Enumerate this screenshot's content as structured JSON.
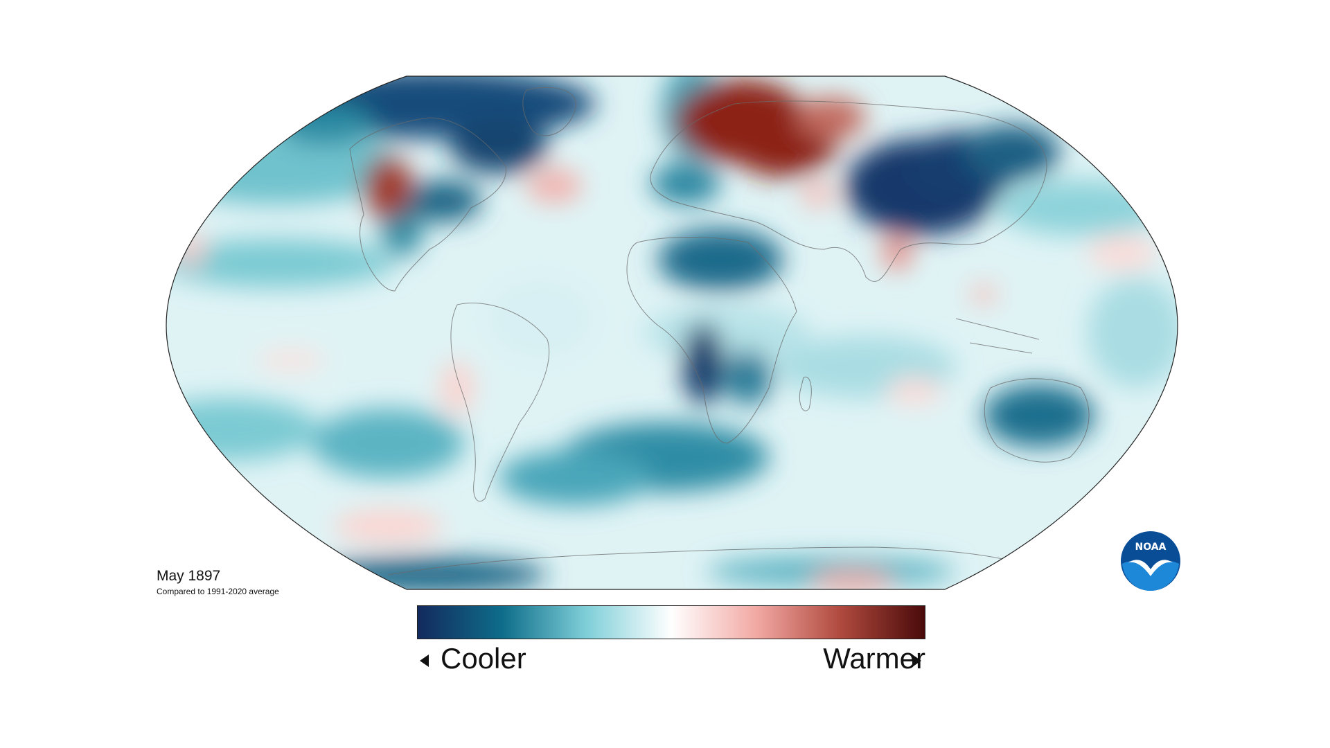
{
  "caption": {
    "title": "May 1897",
    "subtitle": "Compared to 1991-2020 average"
  },
  "legend": {
    "cooler_label": "Cooler",
    "warmer_label": "Warmer",
    "colors": [
      "#132a5e",
      "#0e6d8a",
      "#7fcfd8",
      "#ffffff",
      "#f2a9a4",
      "#b04a3e",
      "#4a0a0a"
    ]
  },
  "logo": {
    "text": "NOAA",
    "ring_color": "#0a4d97",
    "inner_color": "#1e88d8",
    "bird_color": "#ffffff"
  },
  "map": {
    "projection": "Robinson",
    "variable": "Temperature anomaly"
  }
}
